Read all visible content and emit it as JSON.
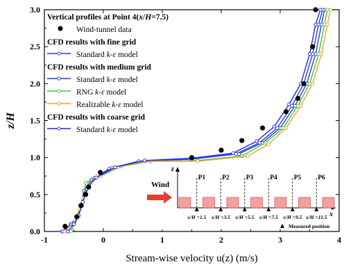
{
  "chart_data": {
    "type": "line",
    "xlabel": "Stream-wise velocity u(z) (m/s)",
    "ylabel": "z/H",
    "xlim": [
      -1,
      4
    ],
    "ylim": [
      0,
      3
    ],
    "xticks": [
      -1,
      0,
      1,
      2,
      3,
      4
    ],
    "yticks": [
      0.0,
      0.5,
      1.0,
      1.5,
      2.0,
      2.5,
      3.0
    ],
    "legend": {
      "placement": "top-left",
      "title": "Vertical profiles at Point 4(x/H=7.5)",
      "groups": [
        {
          "heading": "",
          "entries": [
            "Wind-tunnel data"
          ]
        },
        {
          "heading": "CFD results with fine grid",
          "entries": [
            "Standard k-ε model"
          ]
        },
        {
          "heading": "CFD results with medium grid",
          "entries": [
            "Standard k-ε model",
            "RNG k-ε model",
            "Realizable k-ε model"
          ]
        },
        {
          "heading": "CFD results with coarse grid",
          "entries": [
            "Standard k-ε model"
          ]
        }
      ]
    },
    "colors": {
      "wind_tunnel": "#000000",
      "fine_standard": "#2a3ec8",
      "medium_standard": "#1f3fd8",
      "medium_rng": "#3cc83c",
      "medium_realizable": "#f0a030",
      "coarse_standard": "#2020ff"
    },
    "series": [
      {
        "name": "Wind-tunnel data",
        "style": "scatter",
        "x": [
          -0.65,
          -0.45,
          -0.38,
          -0.3,
          -0.25,
          -0.05,
          1.5,
          2.0,
          2.35,
          2.7,
          3.1,
          3.3,
          3.4,
          3.55,
          3.6
        ],
        "y": [
          0.07,
          0.2,
          0.35,
          0.5,
          0.6,
          0.8,
          1.0,
          1.1,
          1.23,
          1.4,
          1.62,
          1.8,
          2.0,
          2.5,
          3.0
        ]
      },
      {
        "name": "Standard k-ε model",
        "group": "fine",
        "x": [
          -0.7,
          -0.55,
          -0.45,
          -0.38,
          -0.33,
          -0.2,
          0.1,
          0.6,
          1.5,
          2.3,
          2.7,
          3.0,
          3.25,
          3.45,
          3.6,
          3.7,
          3.75
        ],
        "y": [
          0.0,
          0.1,
          0.2,
          0.35,
          0.55,
          0.7,
          0.85,
          0.95,
          0.98,
          1.05,
          1.2,
          1.4,
          1.7,
          2.0,
          2.4,
          2.8,
          3.0
        ]
      },
      {
        "name": "Standard k-ε model",
        "group": "medium",
        "x": [
          -0.68,
          -0.54,
          -0.44,
          -0.36,
          -0.3,
          -0.15,
          0.15,
          0.6,
          1.5,
          2.25,
          2.65,
          2.95,
          3.2,
          3.4,
          3.55,
          3.65,
          3.72
        ],
        "y": [
          0.0,
          0.1,
          0.2,
          0.35,
          0.55,
          0.72,
          0.86,
          0.95,
          0.98,
          1.05,
          1.2,
          1.4,
          1.7,
          2.0,
          2.4,
          2.8,
          3.0
        ]
      },
      {
        "name": "RNG k-ε model",
        "group": "medium",
        "x": [
          -0.55,
          -0.42,
          -0.35,
          -0.3,
          -0.05,
          0.3,
          0.8,
          1.6,
          2.35,
          2.75,
          3.05,
          3.3,
          3.5,
          3.65,
          3.75,
          3.8
        ],
        "y": [
          0.0,
          0.2,
          0.4,
          0.66,
          0.75,
          0.88,
          0.95,
          0.96,
          1.02,
          1.2,
          1.4,
          1.7,
          2.0,
          2.4,
          2.8,
          3.0
        ]
      },
      {
        "name": "Realizable k-ε model",
        "group": "medium",
        "x": [
          -0.65,
          -0.48,
          -0.4,
          -0.34,
          -0.28,
          -0.1,
          0.25,
          0.7,
          1.6,
          2.45,
          2.8,
          3.1,
          3.35,
          3.55,
          3.7,
          3.8,
          3.85
        ],
        "y": [
          0.0,
          0.15,
          0.3,
          0.45,
          0.6,
          0.75,
          0.87,
          0.95,
          0.95,
          1.02,
          1.18,
          1.4,
          1.7,
          2.0,
          2.4,
          2.8,
          3.0
        ]
      },
      {
        "name": "Standard k-ε model",
        "group": "coarse",
        "x": [
          -0.6,
          -0.5,
          -0.42,
          -0.35,
          -0.28,
          -0.12,
          0.2,
          0.7,
          1.5,
          2.2,
          2.6,
          2.9,
          3.15,
          3.35,
          3.5,
          3.6,
          3.68
        ],
        "y": [
          0.0,
          0.1,
          0.22,
          0.4,
          0.58,
          0.73,
          0.87,
          0.96,
          0.99,
          1.06,
          1.22,
          1.42,
          1.72,
          2.0,
          2.4,
          2.8,
          3.0
        ]
      }
    ],
    "inset": {
      "wind_label": "Wind",
      "z_label": "z",
      "x_label": "x",
      "points": [
        "P1",
        "P2",
        "P3",
        "P4",
        "P5",
        "P6"
      ],
      "positions": [
        "x/H =1.5",
        "x/H =3.5",
        "x/H =5.5",
        "x/H =7.5",
        "x/H =9.5",
        "x/H =11.5"
      ],
      "measured_label": "Measured position",
      "building_count": 7,
      "building_color": "#f4a0a0",
      "arrow_color": "#e04030"
    }
  }
}
